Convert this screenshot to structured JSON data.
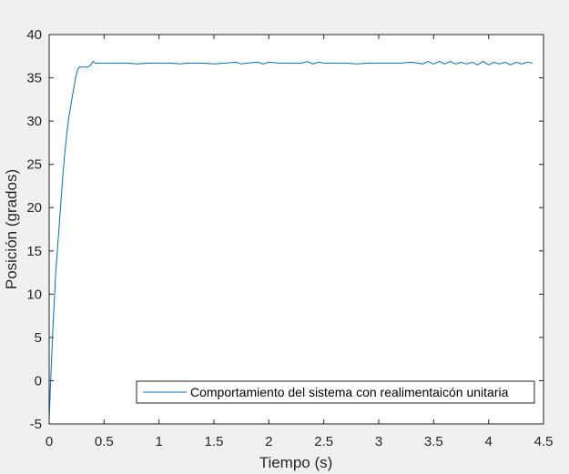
{
  "colors": {
    "figure_background": "#f0f0f0",
    "axes_background": "#ffffff",
    "axes_color": "#262626",
    "series_color": "#0072bd"
  },
  "chart_data": {
    "type": "line",
    "title": "",
    "xlabel": "Tiempo (s)",
    "ylabel": "Posición (grados)",
    "xlim": [
      0,
      4.5
    ],
    "ylim": [
      -5,
      40
    ],
    "xticks": [
      0,
      0.5,
      1,
      1.5,
      2,
      2.5,
      3,
      3.5,
      4,
      4.5
    ],
    "xtick_labels": [
      "0",
      "0.5",
      "1",
      "1.5",
      "2",
      "2.5",
      "3",
      "3.5",
      "4",
      "4.5"
    ],
    "yticks": [
      -5,
      0,
      5,
      10,
      15,
      20,
      25,
      30,
      35,
      40
    ],
    "ytick_labels": [
      "-5",
      "0",
      "5",
      "10",
      "15",
      "20",
      "25",
      "30",
      "35",
      "40"
    ],
    "grid": false,
    "box": true,
    "legend_position": "bottom-right",
    "series": [
      {
        "name": "Comportamiento del sistema con realimentaicón unitaria",
        "color": "#0072bd",
        "x": [
          0,
          0.02,
          0.04,
          0.06,
          0.08,
          0.1,
          0.12,
          0.14,
          0.16,
          0.18,
          0.2,
          0.22,
          0.24,
          0.26,
          0.28,
          0.3,
          0.32,
          0.34,
          0.36,
          0.38,
          0.4,
          0.42,
          0.45,
          0.5,
          0.55,
          0.6,
          0.7,
          0.8,
          0.9,
          1.0,
          1.1,
          1.2,
          1.25,
          1.3,
          1.4,
          1.5,
          1.6,
          1.7,
          1.75,
          1.8,
          1.9,
          1.95,
          2.0,
          2.1,
          2.2,
          2.3,
          2.35,
          2.4,
          2.45,
          2.5,
          2.6,
          2.7,
          2.8,
          2.9,
          3.0,
          3.1,
          3.2,
          3.3,
          3.4,
          3.45,
          3.5,
          3.55,
          3.6,
          3.65,
          3.7,
          3.75,
          3.8,
          3.85,
          3.9,
          3.95,
          4.0,
          4.05,
          4.1,
          4.15,
          4.2,
          4.25,
          4.3,
          4.35,
          4.4
        ],
        "y": [
          -4.5,
          2,
          7.5,
          12.5,
          16,
          19.5,
          23,
          26,
          28.5,
          30.5,
          32,
          33.5,
          35,
          36,
          36.3,
          36.2,
          36.3,
          36.2,
          36.3,
          36.5,
          36.9,
          36.7,
          36.7,
          36.7,
          36.7,
          36.7,
          36.7,
          36.6,
          36.7,
          36.7,
          36.7,
          36.6,
          36.7,
          36.7,
          36.7,
          36.6,
          36.7,
          36.8,
          36.6,
          36.7,
          36.8,
          36.6,
          36.8,
          36.7,
          36.7,
          36.7,
          36.9,
          36.6,
          36.8,
          36.7,
          36.7,
          36.7,
          36.6,
          36.7,
          36.7,
          36.7,
          36.7,
          36.8,
          36.6,
          36.9,
          36.6,
          36.9,
          36.6,
          36.9,
          36.6,
          36.8,
          36.6,
          36.8,
          36.5,
          36.9,
          36.5,
          36.8,
          36.6,
          36.8,
          36.5,
          36.8,
          36.6,
          36.8,
          36.7
        ]
      }
    ]
  }
}
